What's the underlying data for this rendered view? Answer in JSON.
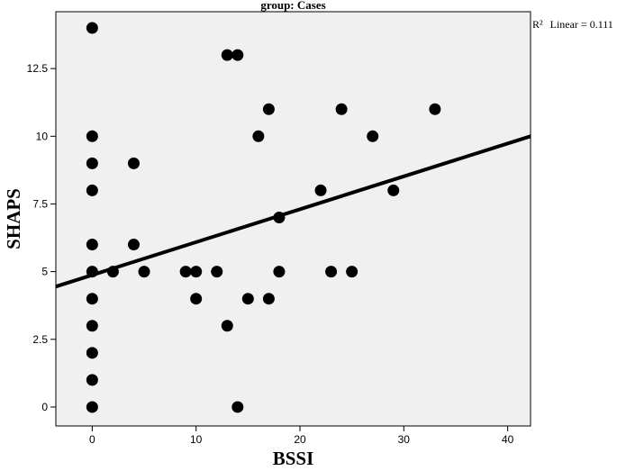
{
  "chart_data": {
    "type": "scatter",
    "title": "group: Cases",
    "xlabel": "BSSI",
    "ylabel": "SHAPS",
    "xlim": [
      -3.5,
      42.2
    ],
    "ylim": [
      -0.7,
      14.6
    ],
    "x_ticks": [
      0,
      10,
      20,
      30,
      40
    ],
    "x_tick_labels": [
      "0",
      "10",
      "20",
      "30",
      "40"
    ],
    "y_ticks": [
      0,
      2.5,
      5,
      7.5,
      10,
      12.5
    ],
    "y_tick_labels": [
      "0",
      "2.5",
      "5",
      "7.5",
      "10",
      "12.5"
    ],
    "grid": false,
    "points": [
      {
        "x": 0,
        "y": 14
      },
      {
        "x": 0,
        "y": 10
      },
      {
        "x": 0,
        "y": 9
      },
      {
        "x": 0,
        "y": 8
      },
      {
        "x": 0,
        "y": 6
      },
      {
        "x": 0,
        "y": 5
      },
      {
        "x": 0,
        "y": 4
      },
      {
        "x": 0,
        "y": 3
      },
      {
        "x": 0,
        "y": 2
      },
      {
        "x": 0,
        "y": 1
      },
      {
        "x": 0,
        "y": 0
      },
      {
        "x": 2,
        "y": 5
      },
      {
        "x": 4,
        "y": 9
      },
      {
        "x": 4,
        "y": 6
      },
      {
        "x": 5,
        "y": 5
      },
      {
        "x": 9,
        "y": 5
      },
      {
        "x": 10,
        "y": 5
      },
      {
        "x": 10,
        "y": 4
      },
      {
        "x": 12,
        "y": 5
      },
      {
        "x": 13,
        "y": 13
      },
      {
        "x": 14,
        "y": 13
      },
      {
        "x": 13,
        "y": 3
      },
      {
        "x": 14,
        "y": 0
      },
      {
        "x": 15,
        "y": 4
      },
      {
        "x": 16,
        "y": 10
      },
      {
        "x": 17,
        "y": 11
      },
      {
        "x": 17,
        "y": 4
      },
      {
        "x": 18,
        "y": 7
      },
      {
        "x": 18,
        "y": 5
      },
      {
        "x": 22,
        "y": 8
      },
      {
        "x": 23,
        "y": 5
      },
      {
        "x": 24,
        "y": 11
      },
      {
        "x": 25,
        "y": 5
      },
      {
        "x": 27,
        "y": 10
      },
      {
        "x": 29,
        "y": 8
      },
      {
        "x": 33,
        "y": 11
      }
    ],
    "fit_line": {
      "type": "linear",
      "x": [
        -3.5,
        42.2
      ],
      "y": [
        4.45,
        10.0
      ],
      "r2_label": "Linear = 0.111"
    },
    "r2_symbol": "R²",
    "colors": {
      "plot_background": "#f0f0f0",
      "points": "#000000",
      "fit_line": "#000000",
      "frame": "#000000"
    }
  }
}
